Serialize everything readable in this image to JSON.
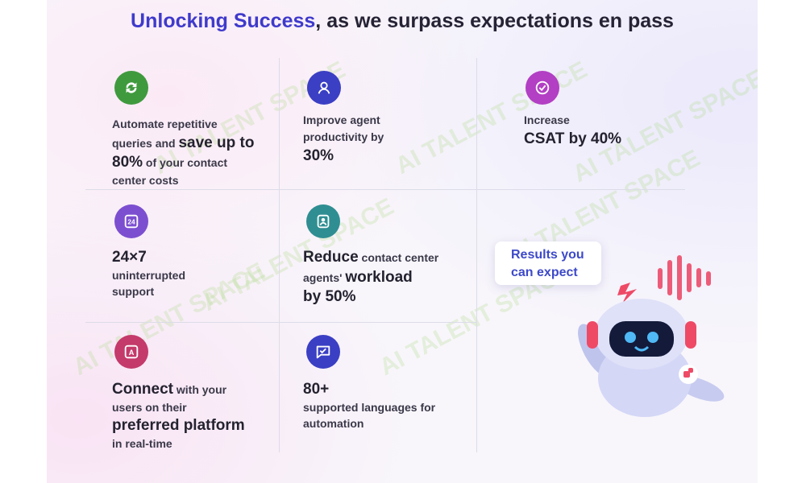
{
  "title": {
    "accent": "Unlocking Success",
    "rest": ", as we surpass expectations en pass"
  },
  "cards": [
    {
      "icon": "refresh-icon",
      "color": "#3f9a3e",
      "lines": [
        {
          "text": "Automate repetitive",
          "size": "sm"
        },
        {
          "text": "queries and ",
          "size": "sm",
          "tail": "save up to",
          "tail_size": "lg"
        },
        {
          "text": "80%",
          "size": "lg",
          "tail": " of your contact",
          "tail_size": "sm"
        },
        {
          "text": "center costs",
          "size": "sm"
        }
      ]
    },
    {
      "icon": "agent-icon",
      "color": "#3a3fc4",
      "lines": [
        {
          "text": "Improve agent",
          "size": "sm"
        },
        {
          "text": "productivity by",
          "size": "sm"
        },
        {
          "text": "30%",
          "size": "lg"
        }
      ]
    },
    {
      "icon": "check-badge-icon",
      "color": "#b23fc4",
      "lines": [
        {
          "text": "Increase",
          "size": "sm"
        },
        {
          "text": "CSAT by 40%",
          "size": "lg"
        }
      ]
    },
    {
      "icon": "clock-24-icon",
      "color": "#7c4fd0",
      "lines": [
        {
          "text": "24×7",
          "size": "lg"
        },
        {
          "text": "uninterrupted",
          "size": "sm"
        },
        {
          "text": "support",
          "size": "sm"
        }
      ]
    },
    {
      "icon": "agent-badge-icon",
      "color": "#2f8e92",
      "lines": [
        {
          "text": "Reduce",
          "size": "lg",
          "tail": " contact center",
          "tail_size": "sm"
        },
        {
          "text": "agents' ",
          "size": "sm",
          "tail": "workload",
          "tail_size": "lg"
        },
        {
          "text": "by 50%",
          "size": "lg"
        }
      ]
    },
    {
      "icon": "translate-icon",
      "color": "#c43a6a",
      "lines": [
        {
          "text": "Connect",
          "size": "lg",
          "tail": " with your",
          "tail_size": "sm"
        },
        {
          "text": "users  on their",
          "size": "sm"
        },
        {
          "text": "preferred platform",
          "size": "lg"
        },
        {
          "text": "in real-time",
          "size": "sm"
        }
      ]
    },
    {
      "icon": "chat-check-icon",
      "color": "#3a3fc4",
      "lines": [
        {
          "text": "80+",
          "size": "lg"
        },
        {
          "text": "supported languages for",
          "size": "sm"
        },
        {
          "text": "automation",
          "size": "sm"
        }
      ]
    }
  ],
  "results": {
    "line1": "Results you",
    "line2": "can expect"
  },
  "watermark": "AI TALENT SPACE"
}
